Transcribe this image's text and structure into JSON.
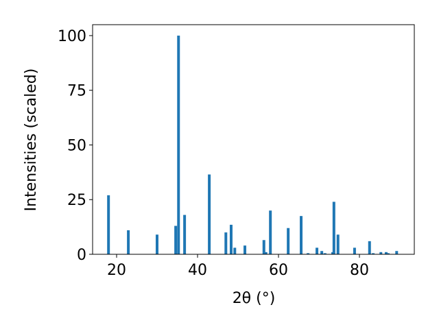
{
  "chart_data": {
    "type": "bar",
    "x_label": "2θ (°)",
    "y_label": "Intensities (scaled)",
    "x": [
      18.0,
      22.9,
      30.0,
      34.6,
      35.3,
      36.8,
      42.9,
      47.0,
      48.3,
      49.2,
      51.7,
      56.4,
      56.9,
      58.0,
      62.4,
      65.6,
      67.3,
      69.5,
      70.7,
      71.5,
      73.4,
      73.7,
      74.7,
      78.8,
      82.5,
      83.4,
      85.3,
      86.6,
      87.1,
      89.2
    ],
    "values": [
      27,
      11,
      9,
      13,
      100,
      18,
      36.5,
      10,
      13.5,
      3,
      4,
      6.5,
      1,
      20,
      12,
      17.5,
      0.5,
      3,
      1.5,
      0.5,
      1,
      24,
      9,
      3,
      6,
      0.5,
      1,
      1,
      0.5,
      1.5
    ],
    "color": "#1f77b4",
    "xlim": [
      14.07,
      93.56
    ],
    "xticks": [
      20,
      40,
      60,
      80
    ],
    "ylim": [
      0,
      105
    ],
    "yticks": [
      0,
      25,
      50,
      75,
      100
    ]
  }
}
